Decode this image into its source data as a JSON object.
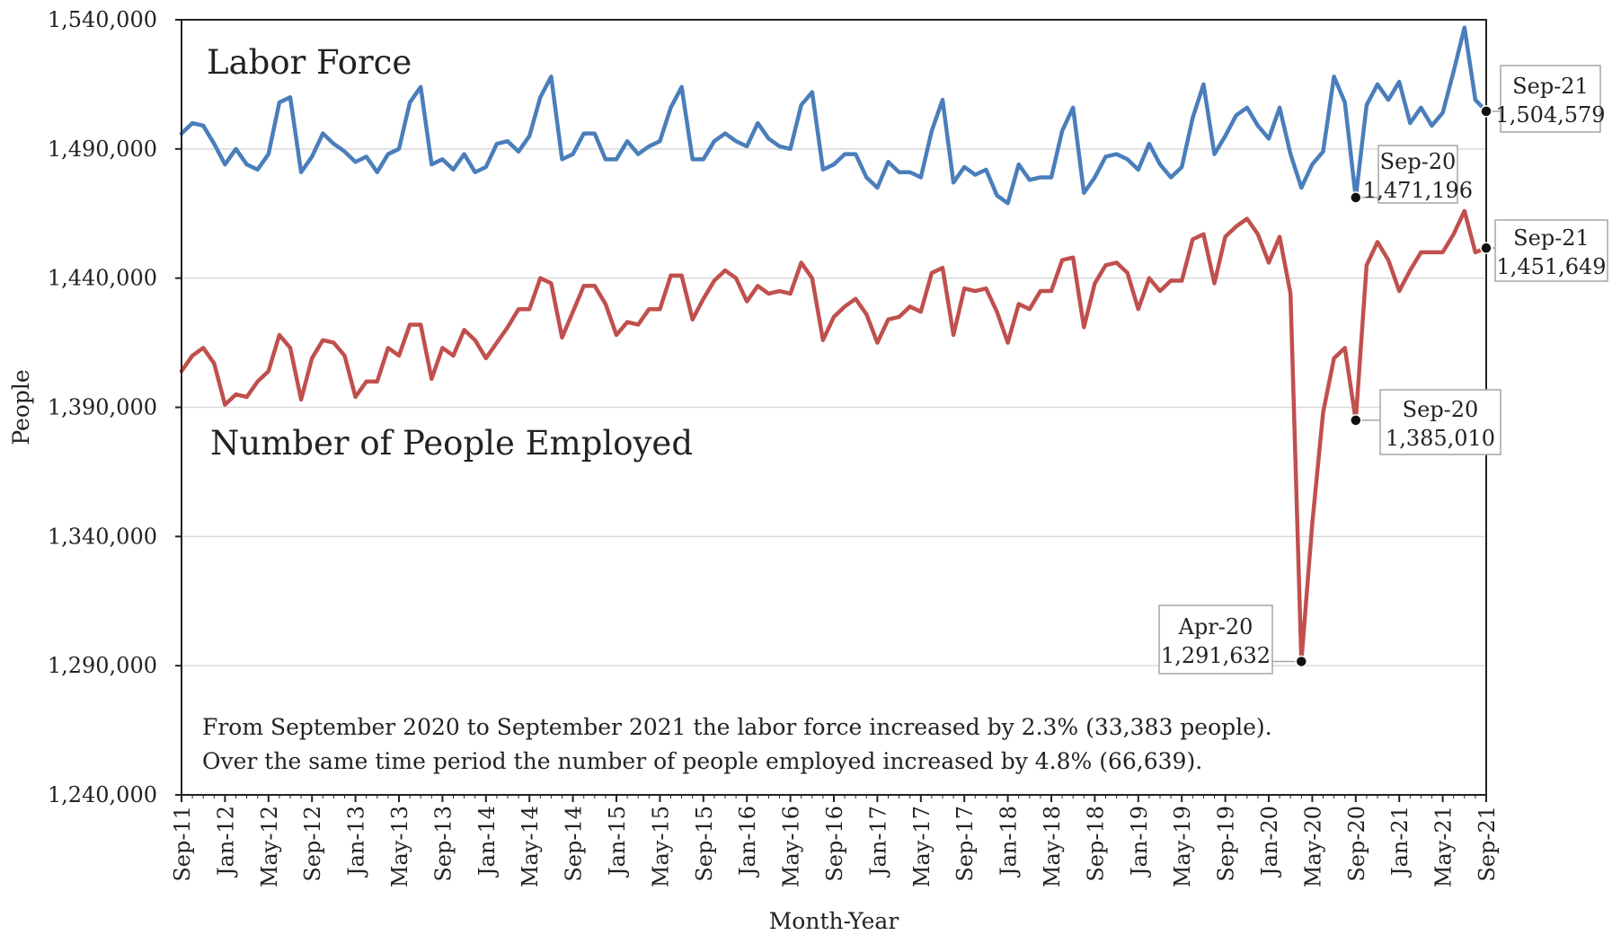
{
  "chart_data": {
    "type": "line",
    "xlabel": "Month-Year",
    "ylabel": "People",
    "ylim": [
      1240000,
      1540000
    ],
    "yticks": [
      1240000,
      1290000,
      1340000,
      1390000,
      1440000,
      1490000,
      1540000
    ],
    "ytick_labels": [
      "1,240,000",
      "1,290,000",
      "1,340,000",
      "1,390,000",
      "1,440,000",
      "1,490,000",
      "1,540,000"
    ],
    "x_range": [
      "Sep-11",
      "Sep-21"
    ],
    "xtick_labels": [
      "Sep-11",
      "Jan-12",
      "May-12",
      "Sep-12",
      "Jan-13",
      "May-13",
      "Sep-13",
      "Jan-14",
      "May-14",
      "Sep-14",
      "Jan-15",
      "May-15",
      "Sep-15",
      "Jan-16",
      "May-16",
      "Sep-16",
      "Jan-17",
      "May-17",
      "Sep-17",
      "Jan-18",
      "May-18",
      "Sep-18",
      "Jan-19",
      "May-19",
      "Sep-19",
      "Jan-20",
      "May-20",
      "Sep-20",
      "Jan-21",
      "May-21",
      "Sep-21"
    ],
    "grid": true,
    "legend": "none",
    "series": [
      {
        "name": "Labor Force",
        "color": "#4a7ebb",
        "values": [
          1496000,
          1500000,
          1499000,
          1492000,
          1484000,
          1490000,
          1484000,
          1482000,
          1488000,
          1508000,
          1510000,
          1481000,
          1487000,
          1496000,
          1492000,
          1489000,
          1485000,
          1487000,
          1481000,
          1488000,
          1490000,
          1508000,
          1514000,
          1484000,
          1486000,
          1482000,
          1488000,
          1481000,
          1483000,
          1492000,
          1493000,
          1489000,
          1495000,
          1510000,
          1518000,
          1486000,
          1488000,
          1496000,
          1496000,
          1486000,
          1486000,
          1493000,
          1488000,
          1491000,
          1493000,
          1506000,
          1514000,
          1486000,
          1486000,
          1493000,
          1496000,
          1493000,
          1491000,
          1500000,
          1494000,
          1491000,
          1490000,
          1507000,
          1512000,
          1482000,
          1484000,
          1488000,
          1488000,
          1479000,
          1475000,
          1485000,
          1481000,
          1481000,
          1479000,
          1497000,
          1509000,
          1477000,
          1483000,
          1480000,
          1482000,
          1472000,
          1469000,
          1484000,
          1478000,
          1479000,
          1479000,
          1497000,
          1506000,
          1473000,
          1479000,
          1487000,
          1488000,
          1486000,
          1482000,
          1492000,
          1484000,
          1479000,
          1483000,
          1502000,
          1515000,
          1488000,
          1495000,
          1503000,
          1506000,
          1499000,
          1494000,
          1506000,
          1488000,
          1475000,
          1484000,
          1489000,
          1518000,
          1508000,
          1471196,
          1507000,
          1515000,
          1509000,
          1516000,
          1500000,
          1506000,
          1499000,
          1504000,
          1520000,
          1537000,
          1509000,
          1504579
        ]
      },
      {
        "name": "Number of People Employed",
        "color": "#c0504d",
        "values": [
          1404000,
          1410000,
          1413000,
          1407000,
          1391000,
          1395000,
          1394000,
          1400000,
          1404000,
          1418000,
          1413000,
          1393000,
          1409000,
          1416000,
          1415000,
          1410000,
          1394000,
          1400000,
          1400000,
          1413000,
          1410000,
          1422000,
          1422000,
          1401000,
          1413000,
          1410000,
          1420000,
          1416000,
          1409000,
          1415000,
          1421000,
          1428000,
          1428000,
          1440000,
          1438000,
          1417000,
          1427000,
          1437000,
          1437000,
          1430000,
          1418000,
          1423000,
          1422000,
          1428000,
          1428000,
          1441000,
          1441000,
          1424000,
          1432000,
          1439000,
          1443000,
          1440000,
          1431000,
          1437000,
          1434000,
          1435000,
          1434000,
          1446000,
          1440000,
          1416000,
          1425000,
          1429000,
          1432000,
          1426000,
          1415000,
          1424000,
          1425000,
          1429000,
          1427000,
          1442000,
          1444000,
          1418000,
          1436000,
          1435000,
          1436000,
          1427000,
          1415000,
          1430000,
          1428000,
          1435000,
          1435000,
          1447000,
          1448000,
          1421000,
          1438000,
          1445000,
          1446000,
          1442000,
          1428000,
          1440000,
          1435000,
          1439000,
          1439000,
          1455000,
          1457000,
          1438000,
          1456000,
          1460000,
          1463000,
          1457000,
          1446000,
          1456000,
          1434000,
          1291632,
          1345000,
          1388000,
          1409000,
          1413000,
          1385010,
          1445000,
          1454000,
          1447000,
          1435000,
          1443000,
          1450000,
          1450000,
          1450000,
          1457000,
          1466000,
          1450000,
          1451649
        ]
      }
    ],
    "series_labels": [
      {
        "text": "Labor Force",
        "series": 0
      },
      {
        "text": "Number of People Employed",
        "series": 1
      }
    ],
    "annotations": [
      {
        "series": 0,
        "index": 108,
        "date": "Sep-20",
        "value": "1,471,196"
      },
      {
        "series": 0,
        "index": 120,
        "date": "Sep-21",
        "value": "1,504,579"
      },
      {
        "series": 1,
        "index": 103,
        "date": "Apr-20",
        "value": "1,291,632"
      },
      {
        "series": 1,
        "index": 108,
        "date": "Sep-20",
        "value": "1,385,010"
      },
      {
        "series": 1,
        "index": 120,
        "date": "Sep-21",
        "value": "1,451,649"
      }
    ],
    "note_lines": [
      "From September 2020 to September 2021 the labor force increased by 2.3% (33,383 people).",
      "Over the same time period the number of people employed increased by 4.8% (66,639)."
    ]
  }
}
